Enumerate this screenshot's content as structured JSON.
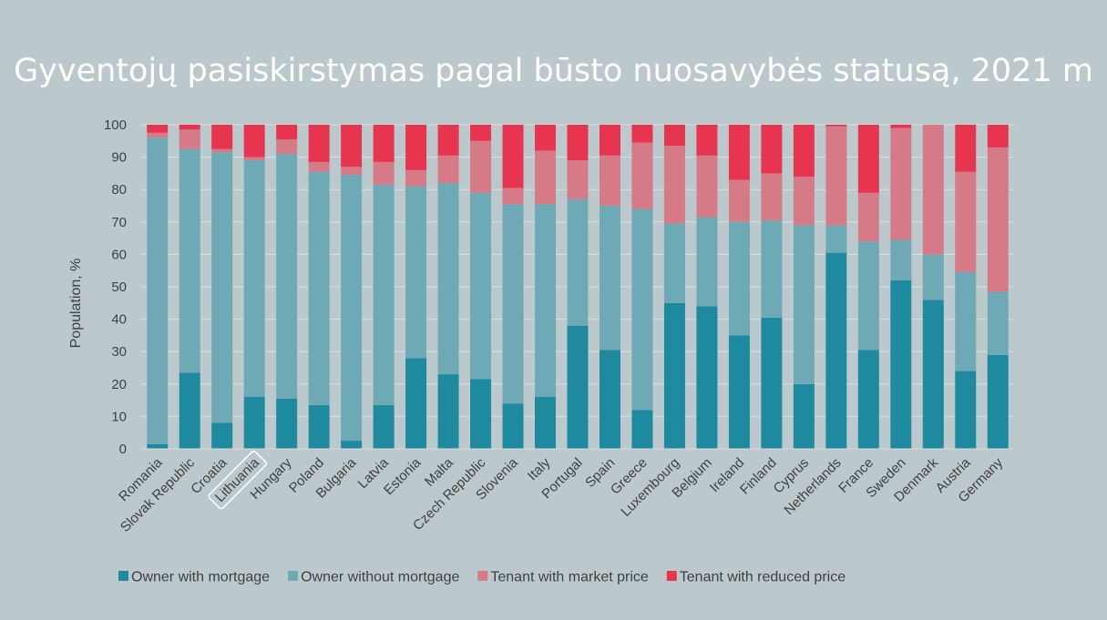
{
  "chart_data": {
    "type": "bar",
    "stacked": true,
    "title": "Gyventojų pasiskirstymas pagal būsto nuosavybės statusą, 2021 m",
    "xlabel": "",
    "ylabel": "Population, %",
    "ylim": [
      0,
      100
    ],
    "yticks": [
      0,
      10,
      20,
      30,
      40,
      50,
      60,
      70,
      80,
      90,
      100
    ],
    "grid": true,
    "legend_position": "bottom",
    "highlighted_category": "Lithuania",
    "categories": [
      "Romania",
      "Slovak Republic",
      "Croatia",
      "Lithuania",
      "Hungary",
      "Poland",
      "Bulgaria",
      "Latvia",
      "Estonia",
      "Malta",
      "Czech Republic",
      "Slovenia",
      "Italy",
      "Portugal",
      "Spain",
      "Greece",
      "Luxembourg",
      "Belgium",
      "Ireland",
      "Finland",
      "Cyprus",
      "Netherlands",
      "France",
      "Sweden",
      "Denmark",
      "Austria",
      "Germany"
    ],
    "series": [
      {
        "name": "Owner with mortgage",
        "color": "#1e8aa0",
        "values": [
          1.5,
          23.5,
          8,
          16,
          15.5,
          13.5,
          2.5,
          13.5,
          28,
          23,
          21.5,
          14,
          16,
          38,
          30.5,
          12,
          45,
          44,
          35,
          40.5,
          20,
          60.5,
          30.5,
          52,
          46,
          24,
          29
        ]
      },
      {
        "name": "Owner without mortgage",
        "color": "#6eaab6",
        "values": [
          94.5,
          69,
          83.5,
          73,
          75.5,
          72,
          82,
          68,
          53,
          59,
          57.5,
          61.5,
          59.5,
          39,
          44.5,
          62,
          24.5,
          27.5,
          35,
          30,
          49,
          8.5,
          33.5,
          12.5,
          14,
          30.5,
          19.5
        ]
      },
      {
        "name": "Tenant with market price",
        "color": "#d67a88",
        "values": [
          1.5,
          6,
          1,
          1,
          4.5,
          3,
          2.5,
          7,
          5,
          8.5,
          16,
          5,
          16.5,
          12,
          15.5,
          20.5,
          24,
          19,
          13,
          14.5,
          15,
          30.5,
          15,
          34.5,
          40,
          31,
          44.5
        ]
      },
      {
        "name": "Tenant with reduced price",
        "color": "#e8354f",
        "values": [
          2.5,
          1.5,
          7.5,
          10,
          4.5,
          11.5,
          13,
          11.5,
          14,
          9.5,
          5,
          19.5,
          8,
          11,
          9.5,
          5.5,
          6.5,
          9.5,
          17,
          15,
          16,
          0.5,
          21,
          1,
          0,
          14.5,
          7
        ]
      }
    ]
  }
}
